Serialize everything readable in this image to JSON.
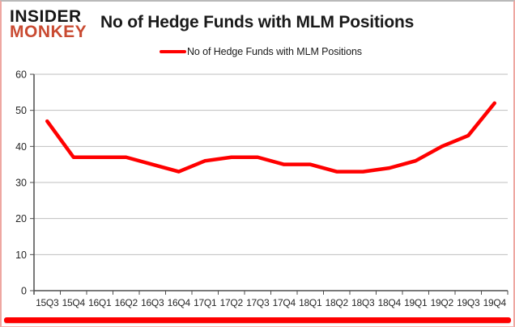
{
  "logo": {
    "line1": "INSIDER",
    "line2": "MONKEY"
  },
  "header": {
    "title": "No of Hedge Funds with MLM Positions"
  },
  "legend": {
    "label": "No of Hedge Funds with MLM Positions",
    "swatch_color": "#ff0000"
  },
  "chart_data": {
    "type": "line",
    "title": "No of Hedge Funds with MLM Positions",
    "categories": [
      "15Q3",
      "15Q4",
      "16Q1",
      "16Q2",
      "16Q3",
      "16Q4",
      "17Q1",
      "17Q2",
      "17Q3",
      "17Q4",
      "18Q1",
      "18Q2",
      "18Q3",
      "18Q4",
      "19Q1",
      "19Q2",
      "19Q3",
      "19Q4"
    ],
    "series": [
      {
        "name": "No of Hedge Funds with MLM Positions",
        "color": "#ff0000",
        "values": [
          47,
          37,
          37,
          37,
          35,
          33,
          36,
          37,
          37,
          35,
          35,
          33,
          33,
          34,
          36,
          40,
          43,
          52
        ]
      }
    ],
    "xlabel": "",
    "ylabel": "",
    "ylim": [
      0,
      60
    ],
    "yticks": [
      0,
      10,
      20,
      30,
      40,
      50,
      60
    ],
    "grid": "horizontal",
    "legend_position": "top"
  },
  "colors": {
    "line": "#ff0000",
    "logo_black": "#151515",
    "logo_red": "#c94a31",
    "gridline": "#bfbfbf",
    "axis": "#4d4d4d",
    "tick_label": "#262626",
    "bottom_bar": "#fe0000"
  }
}
